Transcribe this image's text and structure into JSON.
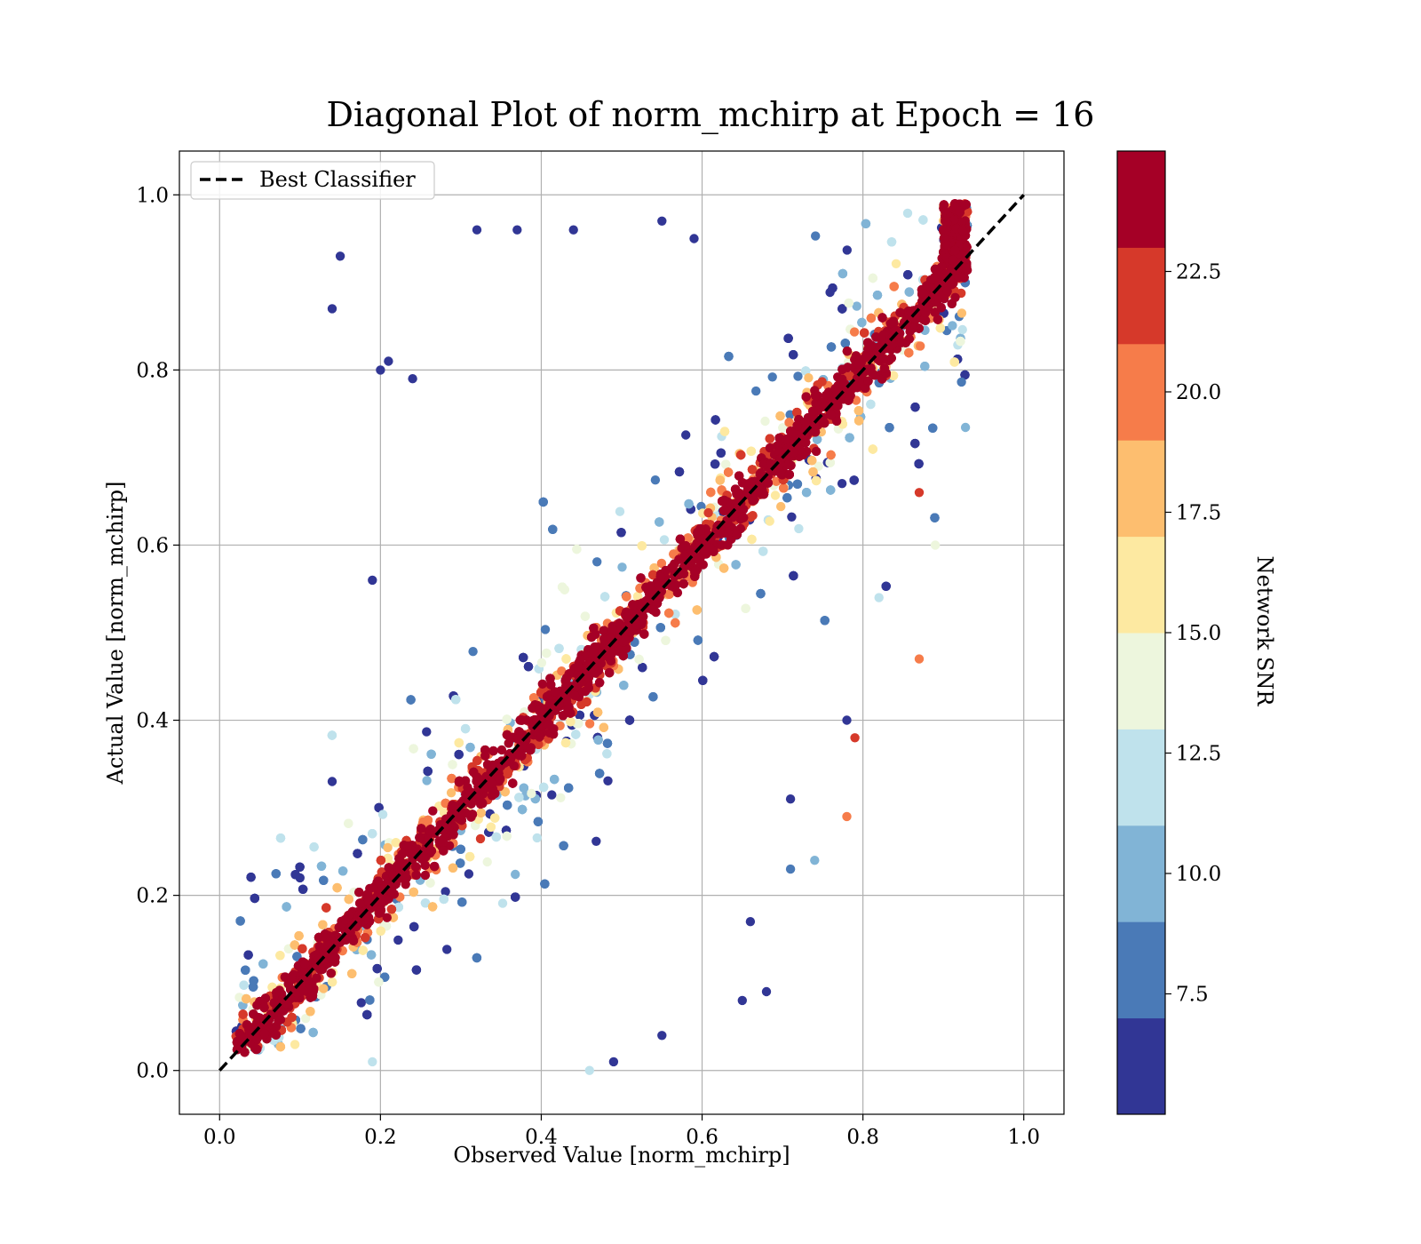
{
  "chart_data": {
    "type": "scatter",
    "title": "Diagonal Plot of norm_mchirp at Epoch = 16",
    "xlabel": "Observed Value [norm_mchirp]",
    "ylabel": "Actual Value [norm_mchirp]",
    "xlim": [
      -0.05,
      1.05
    ],
    "ylim": [
      -0.05,
      1.05
    ],
    "xticks": [
      "0.0",
      "0.2",
      "0.4",
      "0.6",
      "0.8",
      "1.0"
    ],
    "yticks": [
      "0.0",
      "0.2",
      "0.4",
      "0.6",
      "0.8",
      "1.0"
    ],
    "grid": true,
    "legend": {
      "position": "top-left",
      "entries": [
        "Best Classifier"
      ]
    },
    "reference_line": {
      "name": "Best Classifier",
      "x": [
        0.0,
        1.0
      ],
      "y": [
        0.0,
        1.0
      ],
      "style": "dashed",
      "color": "#000000"
    },
    "colorbar": {
      "label": "Network SNR",
      "range": [
        5.0,
        25.0
      ],
      "tick_values": [
        7.5,
        10.0,
        12.5,
        15.0,
        17.5,
        20.0,
        22.5
      ],
      "tick_labels": [
        "7.5",
        "10.0",
        "12.5",
        "15.0",
        "17.5",
        "20.0",
        "22.5"
      ],
      "bins": [
        {
          "from": 5.0,
          "to": 7.0,
          "color": "#313695"
        },
        {
          "from": 7.0,
          "to": 9.0,
          "color": "#4a7ab7"
        },
        {
          "from": 9.0,
          "to": 11.0,
          "color": "#81b4d6"
        },
        {
          "from": 11.0,
          "to": 13.0,
          "color": "#bfe2ec"
        },
        {
          "from": 13.0,
          "to": 15.0,
          "color": "#edf6dd"
        },
        {
          "from": 15.0,
          "to": 17.0,
          "color": "#fde9a1"
        },
        {
          "from": 17.0,
          "to": 19.0,
          "color": "#fdbe6f"
        },
        {
          "from": 19.0,
          "to": 21.0,
          "color": "#f67c4a"
        },
        {
          "from": 21.0,
          "to": 23.0,
          "color": "#d6392a"
        },
        {
          "from": 23.0,
          "to": 25.0,
          "color": "#a50026"
        }
      ]
    },
    "series_representative_points": [
      {
        "x": 0.15,
        "y": 0.93,
        "snr": 6
      },
      {
        "x": 0.14,
        "y": 0.87,
        "snr": 6
      },
      {
        "x": 0.2,
        "y": 0.8,
        "snr": 6
      },
      {
        "x": 0.21,
        "y": 0.81,
        "snr": 6
      },
      {
        "x": 0.24,
        "y": 0.79,
        "snr": 6
      },
      {
        "x": 0.32,
        "y": 0.96,
        "snr": 6
      },
      {
        "x": 0.37,
        "y": 0.96,
        "snr": 6
      },
      {
        "x": 0.44,
        "y": 0.96,
        "snr": 6
      },
      {
        "x": 0.55,
        "y": 0.97,
        "snr": 6
      },
      {
        "x": 0.59,
        "y": 0.95,
        "snr": 6
      },
      {
        "x": 0.19,
        "y": 0.56,
        "snr": 6
      },
      {
        "x": 0.14,
        "y": 0.33,
        "snr": 6
      },
      {
        "x": 0.1,
        "y": 0.22,
        "snr": 6
      },
      {
        "x": 0.49,
        "y": 0.01,
        "snr": 6
      },
      {
        "x": 0.55,
        "y": 0.04,
        "snr": 6
      },
      {
        "x": 0.65,
        "y": 0.08,
        "snr": 6
      },
      {
        "x": 0.68,
        "y": 0.09,
        "snr": 6
      },
      {
        "x": 0.66,
        "y": 0.17,
        "snr": 6
      },
      {
        "x": 0.71,
        "y": 0.31,
        "snr": 6
      },
      {
        "x": 0.78,
        "y": 0.4,
        "snr": 6
      },
      {
        "x": 0.79,
        "y": 0.38,
        "snr": 21
      },
      {
        "x": 0.78,
        "y": 0.29,
        "snr": 20
      },
      {
        "x": 0.87,
        "y": 0.47,
        "snr": 20
      },
      {
        "x": 0.82,
        "y": 0.54,
        "snr": 12
      },
      {
        "x": 0.89,
        "y": 0.6,
        "snr": 14
      },
      {
        "x": 0.87,
        "y": 0.66,
        "snr": 22
      },
      {
        "x": 0.74,
        "y": 0.24,
        "snr": 10
      },
      {
        "x": 0.71,
        "y": 0.23,
        "snr": 8
      },
      {
        "x": 0.46,
        "y": 0.0,
        "snr": 12
      },
      {
        "x": 0.19,
        "y": 0.01,
        "snr": 11
      }
    ]
  }
}
